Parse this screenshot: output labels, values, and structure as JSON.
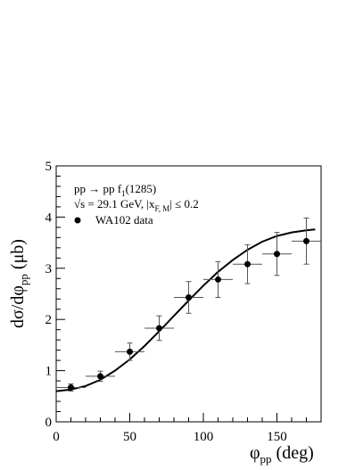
{
  "chart_data": {
    "type": "scatter",
    "xlabel": {
      "main": "φ",
      "sub": "pp",
      "unit": " (deg)"
    },
    "ylabel": {
      "main": "dσ/dφ",
      "sub": "pp",
      "unit": "  (μb)"
    },
    "xlim": [
      0,
      180
    ],
    "ylim": [
      0,
      5
    ],
    "x_ticks": [
      0,
      50,
      100,
      150
    ],
    "y_ticks": [
      0,
      1,
      2,
      3,
      4,
      5
    ],
    "legend_placement": "top-left",
    "annotations": {
      "reaction": {
        "text": "pp → pp f",
        "sub": "1",
        "tail": "(1285)"
      },
      "energy": {
        "text": "√s = 29.1 GeV,  |x",
        "sub": "F, M",
        "tail": "| ≤ 0.2"
      }
    },
    "series": [
      {
        "name": "WA102 data",
        "style": "points-with-errors",
        "x": [
          10,
          30,
          50,
          70,
          90,
          110,
          130,
          150,
          170
        ],
        "y": [
          0.67,
          0.89,
          1.37,
          1.83,
          2.43,
          2.78,
          3.08,
          3.28,
          3.53
        ],
        "yerr": [
          0.07,
          0.1,
          0.17,
          0.24,
          0.31,
          0.35,
          0.38,
          0.42,
          0.45
        ],
        "xerr": [
          10,
          10,
          10,
          10,
          10,
          10,
          10,
          10,
          10
        ]
      },
      {
        "name": "",
        "style": "curve",
        "x": [
          0,
          10,
          20,
          30,
          40,
          50,
          60,
          70,
          80,
          90,
          100,
          110,
          120,
          130,
          140,
          150,
          160,
          170,
          176
        ],
        "y": [
          0.6,
          0.63,
          0.7,
          0.82,
          1.0,
          1.22,
          1.48,
          1.77,
          2.07,
          2.37,
          2.66,
          2.93,
          3.16,
          3.36,
          3.52,
          3.63,
          3.7,
          3.74,
          3.76
        ]
      }
    ]
  }
}
